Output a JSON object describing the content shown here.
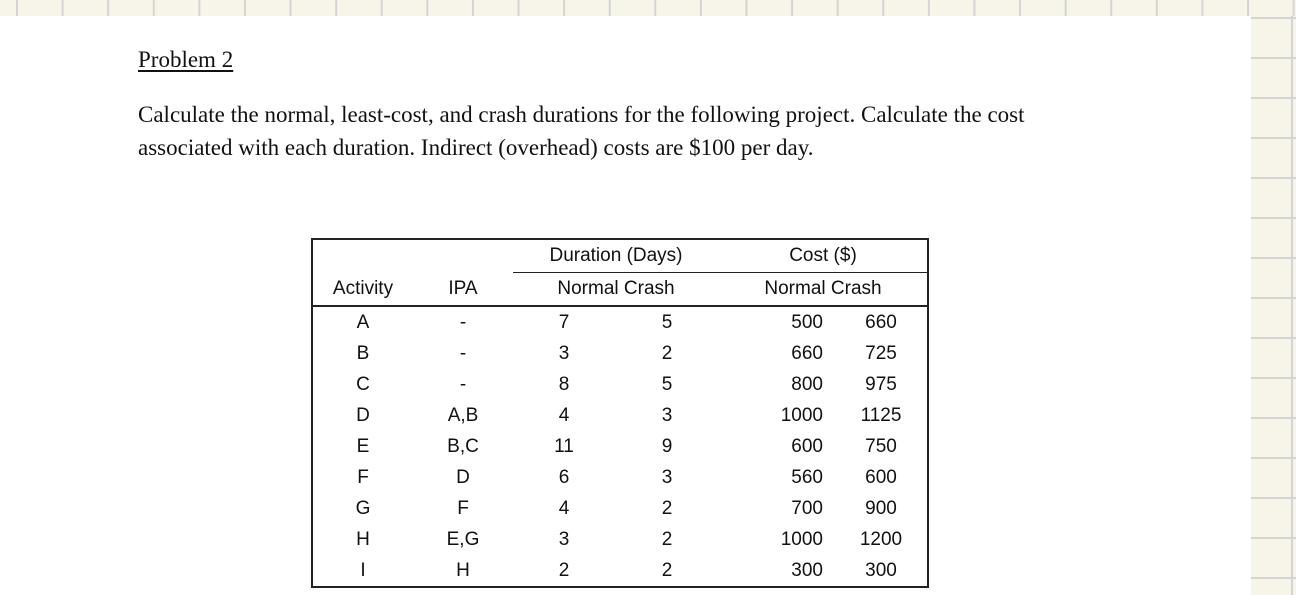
{
  "document": {
    "title": "Problem 2",
    "paragraph": "Calculate the normal, least-cost, and crash durations for the following project.  Calculate the cost associated with each duration.  Indirect (overhead) costs are $100 per day.",
    "paragraph_lines": [
      "Calculate the normal, least-cost, and crash durations for the following project.  Calculate the cost",
      "associated with each duration.  Indirect (overhead) costs are $100 per day."
    ]
  },
  "table": {
    "group_headers": {
      "duration": "Duration (Days)",
      "cost": "Cost ($)"
    },
    "column_headers": {
      "activity": "Activity",
      "ipa": "IPA",
      "duration_normal_crash": "Normal Crash",
      "cost_normal_crash": "Normal Crash"
    },
    "rows": [
      {
        "activity": "A",
        "ipa": "-",
        "dur_normal": "7",
        "dur_crash": "5",
        "cost_normal": "500",
        "cost_crash": "660"
      },
      {
        "activity": "B",
        "ipa": "-",
        "dur_normal": "3",
        "dur_crash": "2",
        "cost_normal": "660",
        "cost_crash": "725"
      },
      {
        "activity": "C",
        "ipa": "-",
        "dur_normal": "8",
        "dur_crash": "5",
        "cost_normal": "800",
        "cost_crash": "975"
      },
      {
        "activity": "D",
        "ipa": "A,B",
        "dur_normal": "4",
        "dur_crash": "3",
        "cost_normal": "1000",
        "cost_crash": "1125"
      },
      {
        "activity": "E",
        "ipa": "B,C",
        "dur_normal": "11",
        "dur_crash": "9",
        "cost_normal": "600",
        "cost_crash": "750"
      },
      {
        "activity": "F",
        "ipa": "D",
        "dur_normal": "6",
        "dur_crash": "3",
        "cost_normal": "560",
        "cost_crash": "600"
      },
      {
        "activity": "G",
        "ipa": "F",
        "dur_normal": "4",
        "dur_crash": "2",
        "cost_normal": "700",
        "cost_crash": "900"
      },
      {
        "activity": "H",
        "ipa": "E,G",
        "dur_normal": "3",
        "dur_crash": "2",
        "cost_normal": "1000",
        "cost_crash": "1200"
      },
      {
        "activity": "I",
        "ipa": "H",
        "dur_normal": "2",
        "dur_crash": "2",
        "cost_normal": "300",
        "cost_crash": "300"
      }
    ]
  },
  "colors": {
    "grid_background": "#f7f5ea",
    "grid_lines": "#d4d4d2",
    "page": "#ffffff",
    "text": "#111111"
  }
}
